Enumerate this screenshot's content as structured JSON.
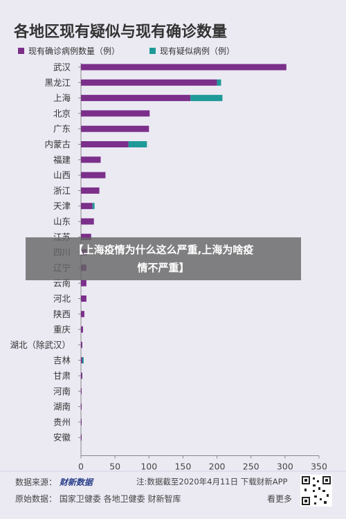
{
  "chart_data": {
    "type": "bar",
    "stacked": true,
    "orientation": "horizontal",
    "title": "各地区现有疑似与现有确诊数量",
    "categories": [
      "武汉",
      "黑龙江",
      "上海",
      "北京",
      "广东",
      "内蒙古",
      "福建",
      "山西",
      "浙江",
      "天津",
      "山东",
      "江苏",
      "四川",
      "辽宁",
      "云南",
      "河北",
      "陕西",
      "重庆",
      "湖北（除武汉）",
      "吉林",
      "甘肃",
      "河南",
      "湖南",
      "贵州",
      "安徽"
    ],
    "series": [
      {
        "name": "现有确诊病例数量（例）",
        "color": "#7b2f8a",
        "values": [
          302,
          200,
          161,
          101,
          100,
          70,
          29,
          36,
          27,
          17,
          19,
          15,
          9,
          8,
          8,
          8,
          5,
          3,
          2,
          2,
          2,
          1,
          1,
          1,
          1
        ]
      },
      {
        "name": "现有疑似病例（例）",
        "color": "#1f9a98",
        "values": [
          0,
          6,
          47,
          0,
          0,
          27,
          0,
          0,
          0,
          3,
          0,
          0,
          0,
          0,
          0,
          0,
          0,
          0,
          0,
          2,
          0,
          0,
          0,
          0,
          0
        ]
      }
    ],
    "xlim": [
      0,
      350
    ],
    "xticks": [
      0,
      50,
      100,
      150,
      200,
      250,
      300,
      350
    ],
    "grid": false,
    "legend_position": "top-left"
  },
  "footer": {
    "source_label": "数据来源：",
    "source_brand": "财新数据",
    "note": "注:数据截至2020年4月11日 下载财新APP",
    "raw_label": "原始数据：",
    "raw_sources": "国家卫健委 各地卫健委 财新智库",
    "watch_label": "看更多"
  },
  "overlay": {
    "text": "【上海疫情为什么这么严重,上海为啥疫情不严重】"
  }
}
